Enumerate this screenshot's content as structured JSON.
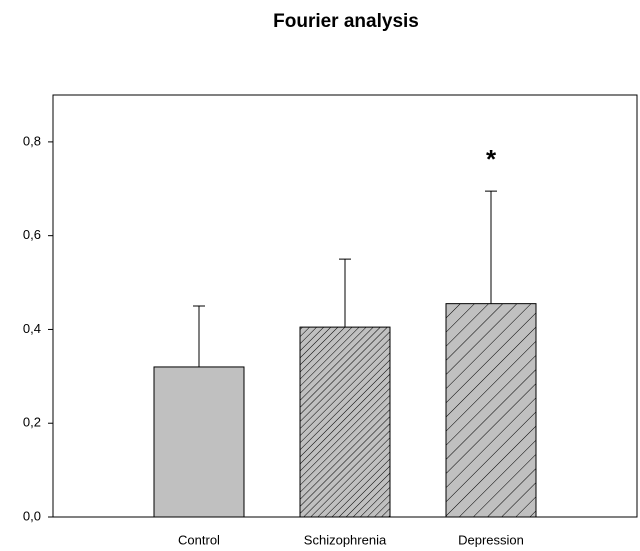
{
  "chart_data": {
    "type": "bar",
    "title": "Fourier analysis",
    "categories": [
      "Control",
      "Schizophrenia",
      "Depression"
    ],
    "values": [
      0.32,
      0.405,
      0.455
    ],
    "errors": [
      0.13,
      0.145,
      0.24
    ],
    "color": "#c0c0c0",
    "hatch": [
      "solid",
      "dense",
      "sparse"
    ],
    "ylim": [
      0,
      0.9
    ],
    "yticks": [
      {
        "value": 0,
        "label": "0,0"
      },
      {
        "value": 0.2,
        "label": "0,2"
      },
      {
        "value": 0.4,
        "label": "0,4"
      },
      {
        "value": 0.6,
        "label": "0,6"
      },
      {
        "value": 0.8,
        "label": "0,8"
      }
    ],
    "grid": false,
    "annotations": [
      {
        "text": "*",
        "category": "Depression"
      }
    ]
  }
}
